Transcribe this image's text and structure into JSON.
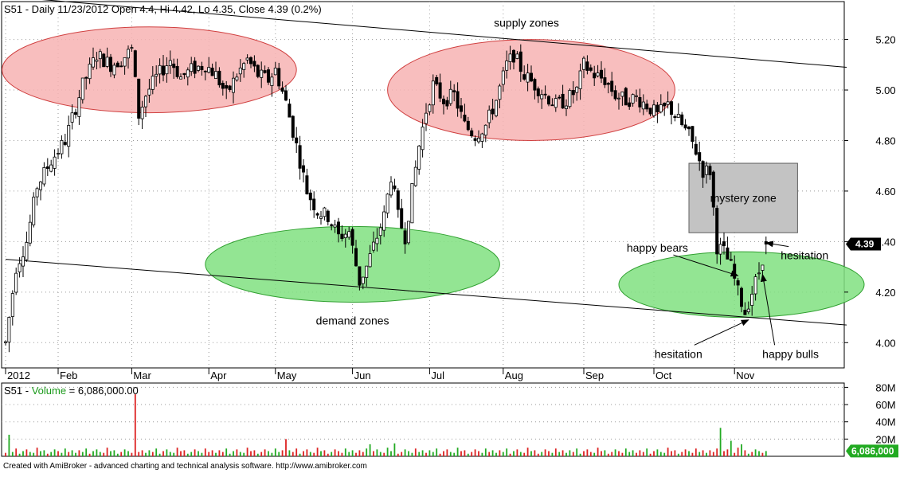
{
  "header": {
    "price_title": "S51 - Daily 11/23/2012 Open 4.4, Hi 4.42, Lo 4.35, Close 4.39 (0.2%)",
    "volume_title_prefix": "S51 - ",
    "volume_title_label": "Volume",
    "volume_title_value": " = 6,086,000.00"
  },
  "footer": {
    "text": "Created with AmiBroker - advanced charting and technical analysis software. http://www.amibroker.com"
  },
  "price_badge": "4.39",
  "volume_badge": "6,086,000",
  "colors": {
    "supply_fill": "#f7b3b3",
    "supply_stroke": "#d04040",
    "demand_fill": "#80e080",
    "demand_stroke": "#30a030",
    "mystery_fill": "#c3c3c3",
    "vol_up": "#22aa22",
    "vol_down": "#dd2222",
    "badge_price": "#000000",
    "badge_volume": "#22aa22"
  },
  "chart_data": [
    {
      "type": "candlestick",
      "symbol": "S51",
      "period": "Daily",
      "last_bar": {
        "date": "11/23/2012",
        "open": 4.4,
        "high": 4.42,
        "low": 4.35,
        "close": 4.39,
        "change_pct": 0.2
      },
      "ylim": [
        3.9,
        5.35
      ],
      "y_ticks": [
        4.0,
        4.2,
        4.4,
        4.6,
        4.8,
        5.0,
        5.2
      ],
      "y_tick_labels": [
        "4.00",
        "4.20",
        "4.40",
        "4.60",
        "4.80",
        "5.00",
        "5.20"
      ],
      "x_months": [
        {
          "label": "2012",
          "bar": 0
        },
        {
          "label": "Feb",
          "bar": 15
        },
        {
          "label": "Mar",
          "bar": 36
        },
        {
          "label": "Apr",
          "bar": 58
        },
        {
          "label": "May",
          "bar": 77
        },
        {
          "label": "Jun",
          "bar": 99
        },
        {
          "label": "Jul",
          "bar": 121
        },
        {
          "label": "Aug",
          "bar": 142
        },
        {
          "label": "Sep",
          "bar": 165
        },
        {
          "label": "Oct",
          "bar": 185
        },
        {
          "label": "Nov",
          "bar": 208
        }
      ],
      "waypoints": [
        {
          "bar": 0,
          "price": 4.0
        },
        {
          "bar": 3,
          "price": 4.3
        },
        {
          "bar": 6,
          "price": 4.4
        },
        {
          "bar": 9,
          "price": 4.62
        },
        {
          "bar": 13,
          "price": 4.72
        },
        {
          "bar": 17,
          "price": 4.8
        },
        {
          "bar": 22,
          "price": 5.02
        },
        {
          "bar": 26,
          "price": 5.14
        },
        {
          "bar": 30,
          "price": 5.1
        },
        {
          "bar": 33,
          "price": 5.12
        },
        {
          "bar": 36,
          "price": 5.16
        },
        {
          "bar": 38,
          "price": 4.9
        },
        {
          "bar": 40,
          "price": 4.98
        },
        {
          "bar": 43,
          "price": 5.05
        },
        {
          "bar": 47,
          "price": 5.12
        },
        {
          "bar": 50,
          "price": 5.05
        },
        {
          "bar": 53,
          "price": 5.08
        },
        {
          "bar": 57,
          "price": 5.1
        },
        {
          "bar": 60,
          "price": 5.06
        },
        {
          "bar": 63,
          "price": 4.98
        },
        {
          "bar": 66,
          "price": 5.06
        },
        {
          "bar": 69,
          "price": 5.12
        },
        {
          "bar": 72,
          "price": 5.06
        },
        {
          "bar": 75,
          "price": 5.04
        },
        {
          "bar": 77,
          "price": 5.08
        },
        {
          "bar": 80,
          "price": 4.95
        },
        {
          "bar": 83,
          "price": 4.78
        },
        {
          "bar": 86,
          "price": 4.6
        },
        {
          "bar": 89,
          "price": 4.52
        },
        {
          "bar": 92,
          "price": 4.5
        },
        {
          "bar": 95,
          "price": 4.42
        },
        {
          "bar": 98,
          "price": 4.44
        },
        {
          "bar": 101,
          "price": 4.24
        },
        {
          "bar": 103,
          "price": 4.3
        },
        {
          "bar": 106,
          "price": 4.42
        },
        {
          "bar": 108,
          "price": 4.5
        },
        {
          "bar": 110,
          "price": 4.66
        },
        {
          "bar": 112,
          "price": 4.5
        },
        {
          "bar": 114,
          "price": 4.42
        },
        {
          "bar": 116,
          "price": 4.6
        },
        {
          "bar": 118,
          "price": 4.78
        },
        {
          "bar": 120,
          "price": 4.92
        },
        {
          "bar": 122,
          "price": 5.02
        },
        {
          "bar": 125,
          "price": 4.96
        },
        {
          "bar": 128,
          "price": 4.98
        },
        {
          "bar": 131,
          "price": 4.86
        },
        {
          "bar": 134,
          "price": 4.82
        },
        {
          "bar": 137,
          "price": 4.86
        },
        {
          "bar": 140,
          "price": 4.96
        },
        {
          "bar": 143,
          "price": 5.1
        },
        {
          "bar": 145,
          "price": 5.14
        },
        {
          "bar": 148,
          "price": 5.06
        },
        {
          "bar": 151,
          "price": 5.02
        },
        {
          "bar": 154,
          "price": 4.98
        },
        {
          "bar": 157,
          "price": 4.94
        },
        {
          "bar": 160,
          "price": 4.96
        },
        {
          "bar": 163,
          "price": 5.0
        },
        {
          "bar": 165,
          "price": 5.1
        },
        {
          "bar": 168,
          "price": 5.06
        },
        {
          "bar": 171,
          "price": 5.04
        },
        {
          "bar": 174,
          "price": 4.98
        },
        {
          "bar": 177,
          "price": 4.96
        },
        {
          "bar": 180,
          "price": 4.97
        },
        {
          "bar": 183,
          "price": 4.94
        },
        {
          "bar": 186,
          "price": 4.9
        },
        {
          "bar": 189,
          "price": 4.94
        },
        {
          "bar": 192,
          "price": 4.88
        },
        {
          "bar": 195,
          "price": 4.82
        },
        {
          "bar": 197,
          "price": 4.76
        },
        {
          "bar": 199,
          "price": 4.68
        },
        {
          "bar": 201,
          "price": 4.68
        },
        {
          "bar": 203,
          "price": 4.38
        },
        {
          "bar": 205,
          "price": 4.36
        },
        {
          "bar": 207,
          "price": 4.3
        },
        {
          "bar": 209,
          "price": 4.2
        },
        {
          "bar": 211,
          "price": 4.12
        },
        {
          "bar": 213,
          "price": 4.2
        },
        {
          "bar": 215,
          "price": 4.28
        },
        {
          "bar": 217,
          "price": 4.39
        }
      ],
      "trendlines": [
        {
          "from": {
            "bar": 0,
            "price": 4.33
          },
          "to": {
            "bar": 240,
            "price": 4.07
          }
        },
        {
          "from": {
            "bar": 0,
            "price": 5.37
          },
          "to": {
            "bar": 240,
            "price": 5.09
          }
        }
      ],
      "zones": [
        {
          "kind": "supply",
          "label": "",
          "center": {
            "bar": 41,
            "price": 5.08
          },
          "radius_bars": 42,
          "radius_price": 0.17
        },
        {
          "kind": "supply",
          "label": "supply zones",
          "center": {
            "bar": 150,
            "price": 5.0
          },
          "radius_bars": 41,
          "radius_price": 0.2
        },
        {
          "kind": "demand",
          "label": "demand zones",
          "center": {
            "bar": 99,
            "price": 4.31
          },
          "radius_bars": 42,
          "radius_price": 0.15
        },
        {
          "kind": "demand",
          "label": "",
          "center": {
            "bar": 210,
            "price": 4.23
          },
          "radius_bars": 35,
          "radius_price": 0.13
        }
      ],
      "mystery_zone": {
        "label": "mystery zone",
        "bar_from": 195,
        "bar_to": 226,
        "price_from": 4.435,
        "price_to": 4.71
      },
      "annotations": [
        {
          "label": "happy bears",
          "label_at": {
            "bar": 186,
            "price": 4.36
          },
          "arrow_to": {
            "bar": 209,
            "price": 4.265
          }
        },
        {
          "label": "hesitation",
          "label_at": {
            "bar": 228,
            "price": 4.33
          },
          "arrow_to": {
            "bar": 217,
            "price": 4.395
          }
        },
        {
          "label": "hesitation",
          "label_at": {
            "bar": 192,
            "price": 3.94
          },
          "arrow_to": {
            "bar": 212,
            "price": 4.09
          }
        },
        {
          "label": "happy bulls",
          "label_at": {
            "bar": 224,
            "price": 3.94
          },
          "arrow_to": {
            "bar": 216,
            "price": 4.27
          }
        }
      ]
    },
    {
      "type": "bar",
      "title": "Volume",
      "last_value": 6086000,
      "ylim": [
        0,
        85
      ],
      "y_unit": "M",
      "y_ticks": [
        20,
        40,
        60,
        80
      ],
      "y_tick_labels": [
        "20M",
        "40M",
        "60M",
        "80M"
      ],
      "baseline_values_M": [
        4,
        7,
        5,
        9,
        3,
        6,
        8,
        5,
        4,
        10,
        6,
        7,
        3,
        5,
        8,
        6,
        4,
        9,
        5,
        7
      ],
      "spikes": [
        {
          "bar": 1,
          "value": 25
        },
        {
          "bar": 37,
          "value": 72
        },
        {
          "bar": 80,
          "value": 20
        },
        {
          "bar": 104,
          "value": 14
        },
        {
          "bar": 111,
          "value": 15
        },
        {
          "bar": 204,
          "value": 33
        },
        {
          "bar": 207,
          "value": 18
        },
        {
          "bar": 210,
          "value": 14
        },
        {
          "bar": 217,
          "value": 6.086
        }
      ]
    }
  ]
}
